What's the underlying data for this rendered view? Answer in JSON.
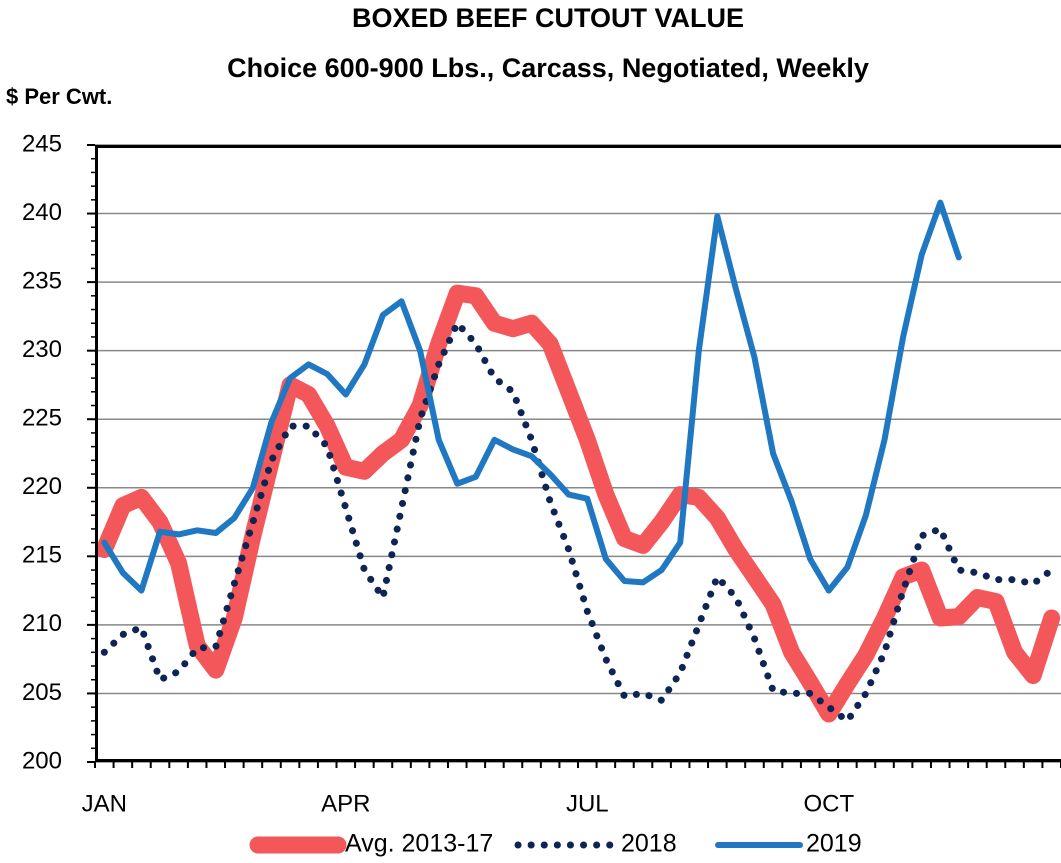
{
  "chart_data": {
    "type": "line",
    "title": "BOXED BEEF CUTOUT VALUE",
    "subtitle": "Choice 600-900 Lbs., Carcass, Negotiated, Weekly",
    "y_label": "$ Per Cwt.",
    "categories": [
      "JAN",
      null,
      null,
      null,
      null,
      null,
      null,
      null,
      null,
      null,
      null,
      null,
      null,
      "APR",
      null,
      null,
      null,
      null,
      null,
      null,
      null,
      null,
      null,
      null,
      null,
      null,
      "JUL",
      null,
      null,
      null,
      null,
      null,
      null,
      null,
      null,
      null,
      null,
      null,
      null,
      "OCT",
      null,
      null,
      null,
      null,
      null,
      null,
      null,
      null,
      null,
      null,
      null,
      null
    ],
    "series": [
      {
        "name": "Avg. 2013-17",
        "color": "#f4575a",
        "line_style": "solid",
        "line_width": 17,
        "values": [
          215.5,
          218.7,
          219.3,
          217.5,
          214.5,
          208.5,
          206.7,
          210.5,
          216.5,
          222,
          227.5,
          226.8,
          224.5,
          221.5,
          221.2,
          222.5,
          223.5,
          226,
          230.5,
          234.2,
          234,
          232,
          231.6,
          232,
          230.5,
          227,
          223.5,
          219.5,
          216.3,
          215.8,
          217.5,
          219.5,
          219.3,
          217.8,
          215.5,
          213.5,
          211.5,
          208,
          205.8,
          203.5,
          205.7,
          207.8,
          210.5,
          213.5,
          214,
          210.5,
          210.6,
          212,
          211.7,
          208,
          206.3,
          210.5
        ]
      },
      {
        "name": "2018",
        "color": "#0d2454",
        "line_style": "dotted",
        "line_width": 7,
        "values": [
          208,
          209.3,
          209.8,
          206,
          206.6,
          208.3,
          208.4,
          213,
          217.5,
          222,
          224.5,
          224.5,
          223,
          218.5,
          214,
          212,
          218.5,
          225,
          229,
          232,
          230.5,
          228,
          227,
          223.5,
          219,
          215.5,
          211,
          207.5,
          204.8,
          205,
          204.5,
          206.5,
          210,
          213.5,
          212,
          209,
          205.2,
          205,
          205,
          204,
          203,
          205,
          208,
          212.5,
          216.5,
          217,
          214,
          213.8,
          213.3,
          213.3,
          213,
          214
        ]
      },
      {
        "name": "2019",
        "color": "#1f78c1",
        "line_style": "solid",
        "line_width": 6,
        "values": [
          216,
          213.8,
          212.5,
          216.8,
          216.6,
          216.9,
          216.7,
          217.8,
          220,
          224.8,
          228,
          229,
          228.3,
          226.8,
          229,
          232.6,
          233.6,
          230,
          223.5,
          220.3,
          220.8,
          223.5,
          222.8,
          222.3,
          221,
          219.5,
          219.2,
          214.8,
          213.2,
          213.1,
          214,
          216,
          230,
          239.8,
          234.5,
          229.5,
          222.5,
          219,
          214.8,
          212.5,
          214.2,
          218,
          223.5,
          231,
          237,
          240.8,
          236.8,
          null,
          null,
          null,
          null,
          null
        ]
      }
    ],
    "ylim": [
      200,
      245
    ],
    "yticks": [
      200,
      205,
      210,
      215,
      220,
      225,
      230,
      235,
      240,
      245
    ],
    "grid": true,
    "legend": "bottom"
  }
}
